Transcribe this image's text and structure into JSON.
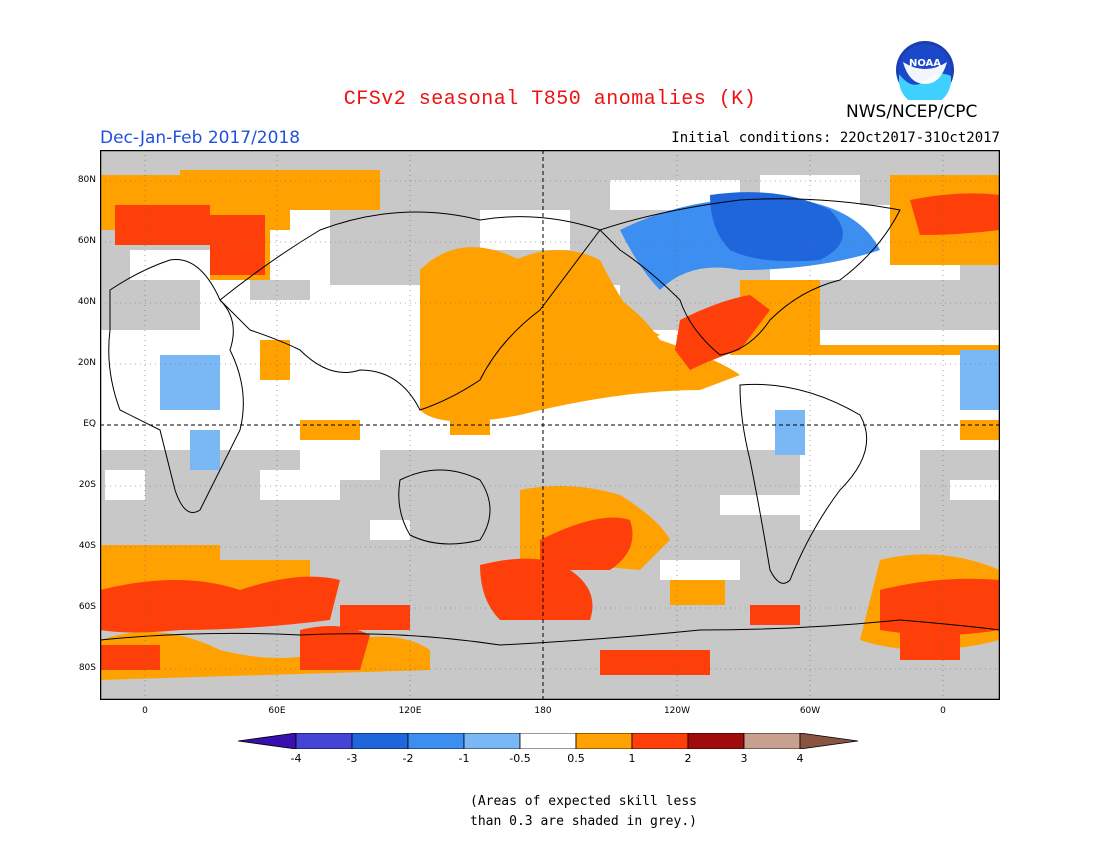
{
  "header": {
    "title": "CFSv2 seasonal T850 anomalies (K)",
    "title_color": "#ee1111",
    "period": "Dec-Jan-Feb 2017/2018",
    "period_color": "#2050e0",
    "initial_conditions": "Initial conditions: 22Oct2017-31Oct2017",
    "agency": "NWS/NCEP/CPC",
    "logo_text": "NOAA"
  },
  "map": {
    "latitude_labels": [
      "80N",
      "60N",
      "40N",
      "20N",
      "EQ",
      "20S",
      "40S",
      "60S",
      "80S"
    ],
    "longitude_labels": [
      "0",
      "60E",
      "120E",
      "180",
      "120W",
      "60W",
      "0"
    ],
    "grey_color": "#c8c8c8",
    "anomaly_regions": [
      {
        "name": "northeast-canada-cold",
        "level": "-2"
      },
      {
        "name": "central-canada-cool",
        "level": "-1"
      },
      {
        "name": "southeast-us-warm",
        "level": "1"
      },
      {
        "name": "north-pacific-warm",
        "level": "0.5"
      },
      {
        "name": "sahara-cool",
        "level": "-1"
      },
      {
        "name": "east-africa-cool",
        "level": "-1"
      },
      {
        "name": "brazil-cool",
        "level": "-1"
      },
      {
        "name": "europe-warm",
        "level": "1"
      },
      {
        "name": "south-pacific-warm",
        "level": "1"
      },
      {
        "name": "southern-ocean-warm",
        "level": "1"
      }
    ]
  },
  "legend": {
    "labels": [
      "-4",
      "-3",
      "-2",
      "-1",
      "-0.5",
      "0.5",
      "1",
      "2",
      "3",
      "4"
    ],
    "colors": [
      "#3a0fb0",
      "#4444d6",
      "#1f66dd",
      "#3c8ff0",
      "#7ab8f5",
      "#ffffff",
      "#ffa100",
      "#ff3f0a",
      "#a00c0c",
      "#c8a090",
      "#8a5540"
    ]
  },
  "footnote": {
    "line1": "(Areas of expected skill less",
    "line2": "than 0.3 are shaded in grey.)"
  }
}
